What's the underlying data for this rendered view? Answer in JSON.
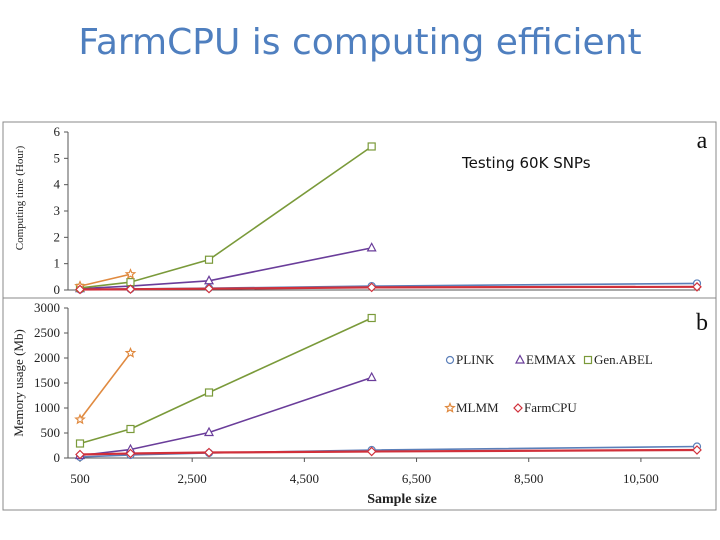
{
  "slide": {
    "title": "FarmCPU is computing efficient"
  },
  "chart_data": [
    {
      "type": "line",
      "panel_letter": "a",
      "ylabel": "Computing time (Hour)",
      "ylim": [
        0,
        6
      ],
      "yticks": [
        0,
        1,
        2,
        3,
        4,
        5,
        6
      ],
      "annotation": "Testing 60K SNPs",
      "series": [
        {
          "name": "PLINK",
          "color": "#5b7fb9",
          "marker": "circle",
          "x": [
            500,
            1400,
            2800,
            5700,
            11500
          ],
          "y": [
            0.02,
            0.04,
            0.07,
            0.15,
            0.25
          ]
        },
        {
          "name": "EMMAX",
          "color": "#6a3d9a",
          "marker": "triangle",
          "x": [
            500,
            1400,
            2800,
            5700
          ],
          "y": [
            0.05,
            0.15,
            0.35,
            1.6
          ]
        },
        {
          "name": "GenABEL",
          "color": "#7a9a3a",
          "marker": "square",
          "x": [
            500,
            1400,
            2800,
            5700
          ],
          "y": [
            0.08,
            0.3,
            1.15,
            5.45
          ]
        },
        {
          "name": "MLMM",
          "color": "#e08a40",
          "marker": "star",
          "x": [
            500,
            1400
          ],
          "y": [
            0.15,
            0.6
          ]
        },
        {
          "name": "FarmCPU",
          "color": "#d0303a",
          "marker": "diamond",
          "x": [
            500,
            1400,
            2800,
            5700,
            11500
          ],
          "y": [
            0.02,
            0.03,
            0.05,
            0.1,
            0.12
          ]
        }
      ]
    },
    {
      "type": "line",
      "panel_letter": "b",
      "ylabel": "Memory usage (Mb)",
      "xlabel": "Sample size",
      "ylim": [
        0,
        3000
      ],
      "yticks": [
        "0",
        "500",
        "1000",
        "1500",
        "2000",
        "2500",
        "3000"
      ],
      "xlim": [
        500,
        11500
      ],
      "xticks": [
        "500",
        "2,500",
        "4,500",
        "6,500",
        "8,500",
        "10,500"
      ],
      "legend": [
        "PLINK",
        "EMMAX",
        "Gen.ABEL",
        "MLMM",
        "FarmCPU"
      ],
      "series": [
        {
          "name": "PLINK",
          "color": "#5b7fb9",
          "marker": "circle",
          "x": [
            500,
            1400,
            2800,
            5700,
            11500
          ],
          "y": [
            20,
            60,
            100,
            160,
            230
          ]
        },
        {
          "name": "EMMAX",
          "color": "#6a3d9a",
          "marker": "triangle",
          "x": [
            500,
            1400,
            2800,
            5700
          ],
          "y": [
            50,
            170,
            510,
            1610
          ]
        },
        {
          "name": "GenABEL",
          "color": "#7a9a3a",
          "marker": "square",
          "x": [
            500,
            1400,
            2800,
            5700
          ],
          "y": [
            290,
            580,
            1310,
            2800
          ]
        },
        {
          "name": "MLMM",
          "color": "#e08a40",
          "marker": "star",
          "x": [
            500,
            1400
          ],
          "y": [
            770,
            2100
          ]
        },
        {
          "name": "FarmCPU",
          "color": "#d0303a",
          "marker": "diamond",
          "x": [
            500,
            1400,
            2800,
            5700,
            11500
          ],
          "y": [
            70,
            90,
            110,
            130,
            160
          ]
        }
      ]
    }
  ]
}
